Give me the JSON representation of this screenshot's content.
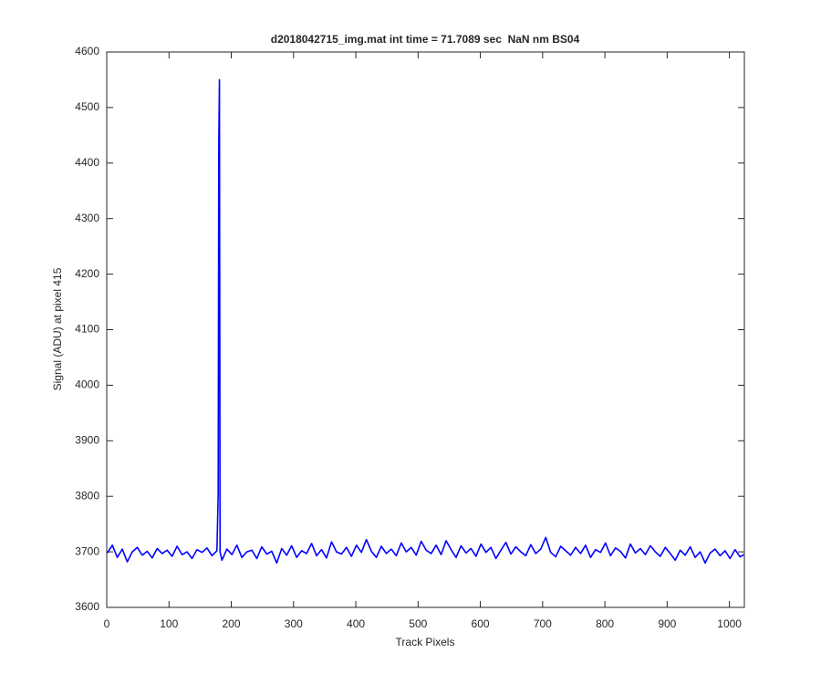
{
  "chart_data": {
    "type": "line",
    "title": "d2018042715_img.mat int time = 71.7089 sec  NaN nm BS04",
    "xlabel": "Track Pixels",
    "ylabel": "Signal (ADU) at pixel 415",
    "xlim": [
      0,
      1024
    ],
    "ylim": [
      3600,
      4600
    ],
    "xticks": [
      0,
      100,
      200,
      300,
      400,
      500,
      600,
      700,
      800,
      900,
      1000
    ],
    "yticks": [
      3600,
      3700,
      3800,
      3900,
      4000,
      4100,
      4200,
      4300,
      4400,
      4500,
      4600
    ],
    "grid": false,
    "x": [
      1,
      9,
      17,
      25,
      33,
      41,
      49,
      57,
      65,
      73,
      81,
      89,
      97,
      105,
      113,
      121,
      129,
      137,
      145,
      153,
      161,
      169,
      177,
      179,
      180,
      181,
      182,
      185,
      193,
      201,
      209,
      217,
      225,
      233,
      241,
      249,
      257,
      265,
      273,
      281,
      289,
      297,
      305,
      313,
      321,
      329,
      337,
      345,
      353,
      361,
      369,
      377,
      385,
      393,
      401,
      409,
      417,
      425,
      433,
      441,
      449,
      457,
      465,
      473,
      481,
      489,
      497,
      505,
      513,
      521,
      529,
      537,
      545,
      553,
      561,
      569,
      577,
      585,
      593,
      601,
      609,
      617,
      625,
      633,
      641,
      649,
      657,
      665,
      673,
      681,
      689,
      697,
      705,
      713,
      721,
      729,
      737,
      745,
      753,
      761,
      769,
      777,
      785,
      793,
      801,
      809,
      817,
      825,
      833,
      841,
      849,
      857,
      865,
      873,
      881,
      889,
      897,
      905,
      913,
      921,
      929,
      937,
      945,
      953,
      961,
      969,
      977,
      985,
      993,
      1001,
      1009,
      1017,
      1023
    ],
    "series": [
      {
        "color": "#0000ff",
        "values": [
          3698,
          3712,
          3690,
          3705,
          3682,
          3700,
          3708,
          3694,
          3701,
          3689,
          3706,
          3697,
          3703,
          3692,
          3710,
          3695,
          3700,
          3688,
          3704,
          3699,
          3707,
          3693,
          3702,
          3805,
          4440,
          4550,
          3700,
          3685,
          3705,
          3695,
          3712,
          3690,
          3700,
          3703,
          3688,
          3709,
          3696,
          3701,
          3680,
          3706,
          3694,
          3711,
          3690,
          3702,
          3697,
          3715,
          3693,
          3704,
          3689,
          3718,
          3700,
          3696,
          3708,
          3692,
          3712,
          3699,
          3722,
          3701,
          3690,
          3710,
          3697,
          3705,
          3693,
          3716,
          3700,
          3708,
          3694,
          3719,
          3703,
          3697,
          3712,
          3695,
          3720,
          3704,
          3690,
          3711,
          3698,
          3706,
          3692,
          3714,
          3699,
          3708,
          3688,
          3703,
          3717,
          3696,
          3709,
          3700,
          3693,
          3713,
          3697,
          3705,
          3726,
          3699,
          3691,
          3710,
          3702,
          3694,
          3708,
          3697,
          3712,
          3690,
          3704,
          3699,
          3716,
          3693,
          3707,
          3701,
          3689,
          3714,
          3698,
          3706,
          3695,
          3711,
          3700,
          3692,
          3708,
          3697,
          3685,
          3703,
          3694,
          3709,
          3690,
          3700,
          3680,
          3698,
          3705,
          3693,
          3702,
          3688,
          3704,
          3691,
          3695
        ]
      }
    ]
  }
}
